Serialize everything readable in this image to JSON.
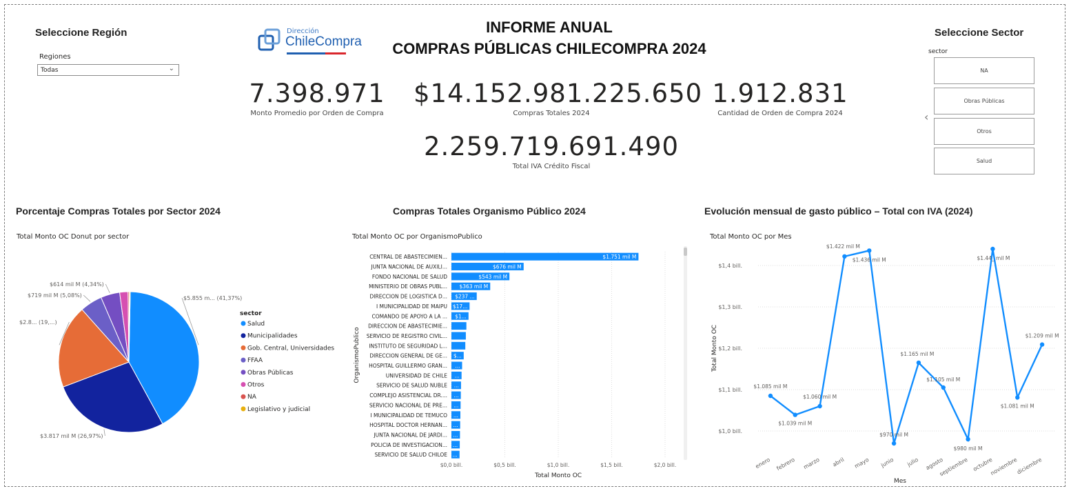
{
  "region_slicer": {
    "title": "Seleccione Región",
    "label": "Regiones",
    "selected": "Todas"
  },
  "logo": {
    "top": "Dirección",
    "brand": "ChileCompra"
  },
  "report_title": {
    "line1": "INFORME ANUAL",
    "line2": "COMPRAS PÚBLICAS CHILECOMPRA 2024"
  },
  "kpis": {
    "avg_value": "7.398.971",
    "avg_label": "Monto Promedio por Orden de Compra",
    "total_value": "$14.152.981.225.650",
    "total_label": "Compras Totales 2024",
    "count_value": "1.912.831",
    "count_label": "Cantidad de Orden de Compra 2024",
    "iva_value": "2.259.719.691.490",
    "iva_label": "Total IVA Crédito Fiscal"
  },
  "sector_slicer": {
    "title": "Seleccione Sector",
    "label": "sector",
    "options": [
      "NA",
      "Obras Públicas",
      "Otros",
      "Salud"
    ],
    "prev_icon": "chevron-left-icon"
  },
  "pie_section": {
    "title": "Porcentaje Compras Totales por Sector 2024",
    "subtitle": "Total Monto OC Donut por sector"
  },
  "bar_section": {
    "title": "Compras Totales Organismo Público 2024",
    "subtitle": "Total Monto OC por OrganismoPublico"
  },
  "line_section": {
    "title": "Evolución mensual de gasto público – Total con IVA (2024)",
    "subtitle": "Total Monto OC por Mes"
  },
  "chart_data": [
    {
      "type": "pie",
      "title": "Total Monto OC Donut por sector",
      "legend_title": "sector",
      "legend_position": "right",
      "slices": [
        {
          "name": "Salud",
          "value": 41.37,
          "label": "$5.855 m... (41,37%)",
          "color": "#118DFF"
        },
        {
          "name": "Municipalidades",
          "value": 26.97,
          "label": "$3.817 mil M (26,97%)",
          "color": "#12239E"
        },
        {
          "name": "Gob. Central, Universidades",
          "value": 19.0,
          "label": "$2.8... (19,...)",
          "color": "#E66C37"
        },
        {
          "name": "FFAA",
          "value": 5.08,
          "label": "$719 mil M (5,08%)",
          "color": "#6B5FC7"
        },
        {
          "name": "Obras Públicas",
          "value": 4.34,
          "label": "$614 mil M (4,34%)",
          "color": "#744EC2"
        },
        {
          "name": "Otros",
          "value": 1.9,
          "label": "",
          "color": "#D64FB1"
        },
        {
          "name": "NA",
          "value": 0.3,
          "label": "",
          "color": "#D9534F"
        },
        {
          "name": "Legislativo y judicial",
          "value": 0.2,
          "label": "",
          "color": "#E8B00F"
        }
      ]
    },
    {
      "type": "bar",
      "orientation": "horizontal",
      "title": "Total Monto OC por OrganismoPublico",
      "xlabel": "Total Monto OC",
      "ylabel": "OrganismoPublico",
      "xlim": [
        0,
        2.0
      ],
      "x_ticks": [
        "$0,0 bill.",
        "$0,5 bill.",
        "$1,0 bill.",
        "$1,5 bill.",
        "$2,0 bill."
      ],
      "color": "#118DFF",
      "categories": [
        "CENTRAL DE ABASTECIMIEN...",
        "JUNTA NACIONAL DE AUXILI...",
        "FONDO NACIONAL DE SALUD",
        "MINISTERIO DE OBRAS PUBL...",
        "DIRECCION DE LOGISTICA D...",
        "I MUNICIPALIDAD DE MAIPU",
        "COMANDO DE APOYO A LA ...",
        "DIRECCION DE ABASTECIMIE...",
        "SERVICIO DE REGISTRO CIVIL...",
        "INSTITUTO DE SEGURIDAD L...",
        "DIRECCION GENERAL DE GE...",
        "HOSPITAL GUILLERMO GRAN...",
        "UNIVERSIDAD DE CHILE",
        "SERVICIO DE SALUD NUBLE",
        "COMPLEJO ASISTENCIAL DR....",
        "SERVICIO NACIONAL DE PRE...",
        "I MUNICIPALIDAD DE TEMUCO",
        "HOSPITAL DOCTOR HERNAN...",
        "JUNTA NACIONAL DE JARDI...",
        "POLICIA DE INVESTIGACION...",
        "SERVICIO DE SALUD CHILOE"
      ],
      "values": [
        1.751,
        0.676,
        0.543,
        0.363,
        0.237,
        0.17,
        0.16,
        0.14,
        0.135,
        0.13,
        0.115,
        0.1,
        0.095,
        0.09,
        0.088,
        0.086,
        0.084,
        0.082,
        0.08,
        0.078,
        0.076
      ],
      "labels": [
        "$1.751 mil M",
        "$676 mil M",
        "$543 mil M",
        "$363 mil M",
        "$237 ...",
        "$17...",
        "$1...",
        "",
        "",
        "",
        "$...",
        "...",
        "...",
        "...",
        "...",
        "...",
        "...",
        "...",
        "...",
        "...",
        "..."
      ]
    },
    {
      "type": "line",
      "title": "Total Monto OC por Mes",
      "xlabel": "Mes",
      "ylabel": "Total Monto OC",
      "ylim": [
        0.95,
        1.45
      ],
      "y_ticks": [
        "$1,0 bill.",
        "$1,1 bill.",
        "$1,2 bill.",
        "$1,3 bill.",
        "$1,4 bill."
      ],
      "y_tick_values": [
        1.0,
        1.1,
        1.2,
        1.3,
        1.4
      ],
      "color": "#118DFF",
      "categories": [
        "enero",
        "febrero",
        "marzo",
        "abril",
        "mayo",
        "junio",
        "julio",
        "agosto",
        "septiembre",
        "octubre",
        "noviembre",
        "diciembre"
      ],
      "values": [
        1.085,
        1.039,
        1.06,
        1.422,
        1.436,
        0.97,
        1.165,
        1.105,
        0.98,
        1.44,
        1.081,
        1.209
      ],
      "labels": [
        "$1.085 mil M",
        "$1.039 mil M",
        "$1.060 mil M",
        "$1.422 mil M",
        "$1.436 mil M",
        "$970 mil M",
        "$1.165 mil M",
        "$1.105 mil M",
        "$980 mil M",
        "$1.44_ mil M",
        "$1.081 mil M",
        "$1.209 mil M"
      ]
    }
  ]
}
